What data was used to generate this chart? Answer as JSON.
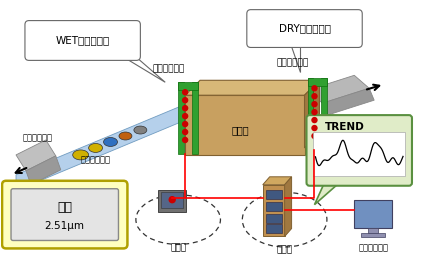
{
  "bg_color": "#ffffff",
  "bubble_wet": "WET膜厚測定用",
  "bubble_dry": "DRY膜厚測定用",
  "label_sensor1": "センサヘッド",
  "label_sensor2": "センサヘッド",
  "label_dryer": "乾燥機",
  "label_coater1": "表面コーター",
  "label_coater2": "表面コーター",
  "label_trend": "TREND",
  "label_film": "膜厚",
  "label_value": "2.51μm",
  "label_op_room": "運転室",
  "label_mgmt_room": "管理室",
  "label_pc": "上位パソコン"
}
